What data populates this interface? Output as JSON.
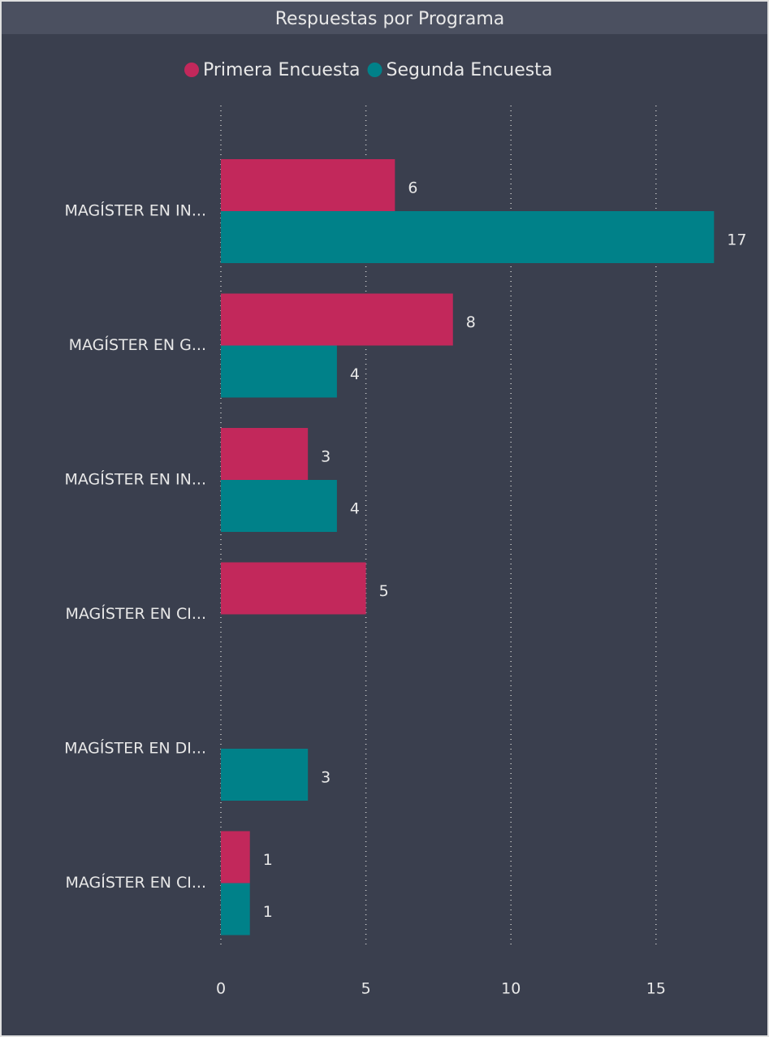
{
  "chart_data": {
    "type": "bar",
    "orientation": "horizontal",
    "title": "Respuestas por Programa",
    "categories": [
      "MAGÍSTER EN IN...",
      "MAGÍSTER EN G...",
      "MAGÍSTER EN IN...",
      "MAGÍSTER EN CI...",
      "MAGÍSTER EN DI...",
      "MAGÍSTER EN CI..."
    ],
    "series": [
      {
        "name": "Primera Encuesta",
        "color": "#c2285b",
        "values": [
          6,
          8,
          3,
          5,
          null,
          1
        ]
      },
      {
        "name": "Segunda Encuesta",
        "color": "#008189",
        "values": [
          17,
          4,
          4,
          null,
          3,
          1
        ]
      }
    ],
    "xlim": [
      0,
      18
    ],
    "xticks": [
      0,
      5,
      10,
      15
    ],
    "grid": true,
    "legend": "top"
  }
}
